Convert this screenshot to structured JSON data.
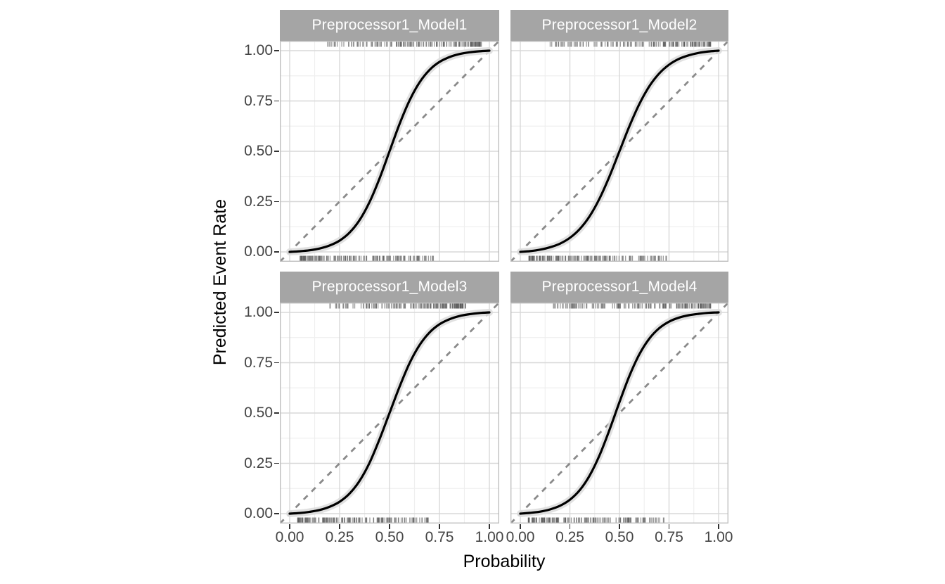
{
  "figure": {
    "background": "#FFFFFF",
    "description": "Faceted calibration plot: predicted event rate vs probability for four models"
  },
  "chart_data": {
    "type": "line",
    "title": "",
    "xlabel": "Probability",
    "ylabel": "Predicted Event Rate",
    "xlim": [
      0,
      1
    ],
    "ylim": [
      0,
      1
    ],
    "grid": "major+minor",
    "legend": "none",
    "x_tick_labels": [
      "0.00",
      "0.25",
      "0.50",
      "0.75",
      "1.00"
    ],
    "y_tick_labels": [
      "0.00",
      "0.25",
      "0.50",
      "0.75",
      "1.00"
    ],
    "x_tick_values": [
      0,
      0.25,
      0.5,
      0.75,
      1
    ],
    "y_tick_values": [
      0,
      0.25,
      0.5,
      0.75,
      1
    ],
    "minor_grid_values": [
      0.125,
      0.375,
      0.625,
      0.875
    ],
    "reference_line": {
      "type": "identity-diagonal",
      "from": [
        0,
        0
      ],
      "to": [
        1,
        1
      ],
      "style": "dashed",
      "color": "#8A8A8A"
    },
    "curve_x": [
      0,
      0.05,
      0.1,
      0.15,
      0.2,
      0.25,
      0.3,
      0.35,
      0.4,
      0.45,
      0.5,
      0.55,
      0.6,
      0.65,
      0.7,
      0.75,
      0.8,
      0.85,
      0.9,
      0.95,
      1
    ],
    "facets": [
      {
        "title": "Preprocessor1_Model1",
        "curve_y": [
          0,
          0.003,
          0.008,
          0.017,
          0.032,
          0.056,
          0.096,
          0.158,
          0.248,
          0.365,
          0.5,
          0.635,
          0.752,
          0.842,
          0.904,
          0.944,
          0.968,
          0.983,
          0.992,
          0.997,
          1
        ],
        "rug_top": {
          "side": "top",
          "count": 150,
          "range": [
            0.18,
            0.96
          ],
          "bias": "high",
          "seed": 101
        },
        "rug_bottom": {
          "side": "bottom",
          "count": 150,
          "range": [
            0.05,
            0.72
          ],
          "bias": "low",
          "seed": 102
        }
      },
      {
        "title": "Preprocessor1_Model2",
        "curve_y": [
          0,
          0.004,
          0.011,
          0.023,
          0.041,
          0.07,
          0.114,
          0.178,
          0.266,
          0.376,
          0.5,
          0.624,
          0.734,
          0.822,
          0.886,
          0.93,
          0.959,
          0.977,
          0.989,
          0.996,
          1
        ],
        "rug_top": {
          "side": "top",
          "count": 145,
          "range": [
            0.15,
            0.96
          ],
          "bias": "high",
          "seed": 201
        },
        "rug_bottom": {
          "side": "bottom",
          "count": 150,
          "range": [
            0.04,
            0.74
          ],
          "bias": "low",
          "seed": 202
        }
      },
      {
        "title": "Preprocessor1_Model3",
        "curve_y": [
          0,
          0.003,
          0.009,
          0.018,
          0.034,
          0.059,
          0.1,
          0.163,
          0.253,
          0.37,
          0.5,
          0.63,
          0.747,
          0.837,
          0.9,
          0.941,
          0.966,
          0.982,
          0.991,
          0.997,
          1
        ],
        "rug_top": {
          "side": "top",
          "count": 150,
          "range": [
            0.2,
            0.88
          ],
          "bias": "high",
          "seed": 301
        },
        "rug_bottom": {
          "side": "bottom",
          "count": 150,
          "range": [
            0.04,
            0.7
          ],
          "bias": "low",
          "seed": 302
        }
      },
      {
        "title": "Preprocessor1_Model4",
        "curve_y": [
          0,
          0.004,
          0.01,
          0.021,
          0.039,
          0.069,
          0.117,
          0.19,
          0.291,
          0.417,
          0.554,
          0.684,
          0.791,
          0.869,
          0.921,
          0.954,
          0.974,
          0.986,
          0.993,
          0.998,
          1
        ],
        "rug_top": {
          "side": "top",
          "count": 150,
          "range": [
            0.15,
            0.96
          ],
          "bias": "high",
          "seed": 401
        },
        "rug_bottom": {
          "side": "bottom",
          "count": 150,
          "range": [
            0.04,
            0.74
          ],
          "bias": "low",
          "seed": 402
        }
      }
    ],
    "colors": {
      "strip_background": "#A5A5A5",
      "strip_text": "#FFFFFF",
      "panel_background": "#FFFFFF",
      "panel_border": "#BFBFBF",
      "grid_major": "#D8D8D8",
      "grid_minor": "#EFEFEF",
      "curve": "#000000",
      "confidence_band": "#DCDCDC",
      "reference_dash": "#8A8A8A",
      "rug": "#595959",
      "axis_text": "#444444",
      "axis_title": "#000000",
      "tick_mark": "#333333"
    }
  }
}
